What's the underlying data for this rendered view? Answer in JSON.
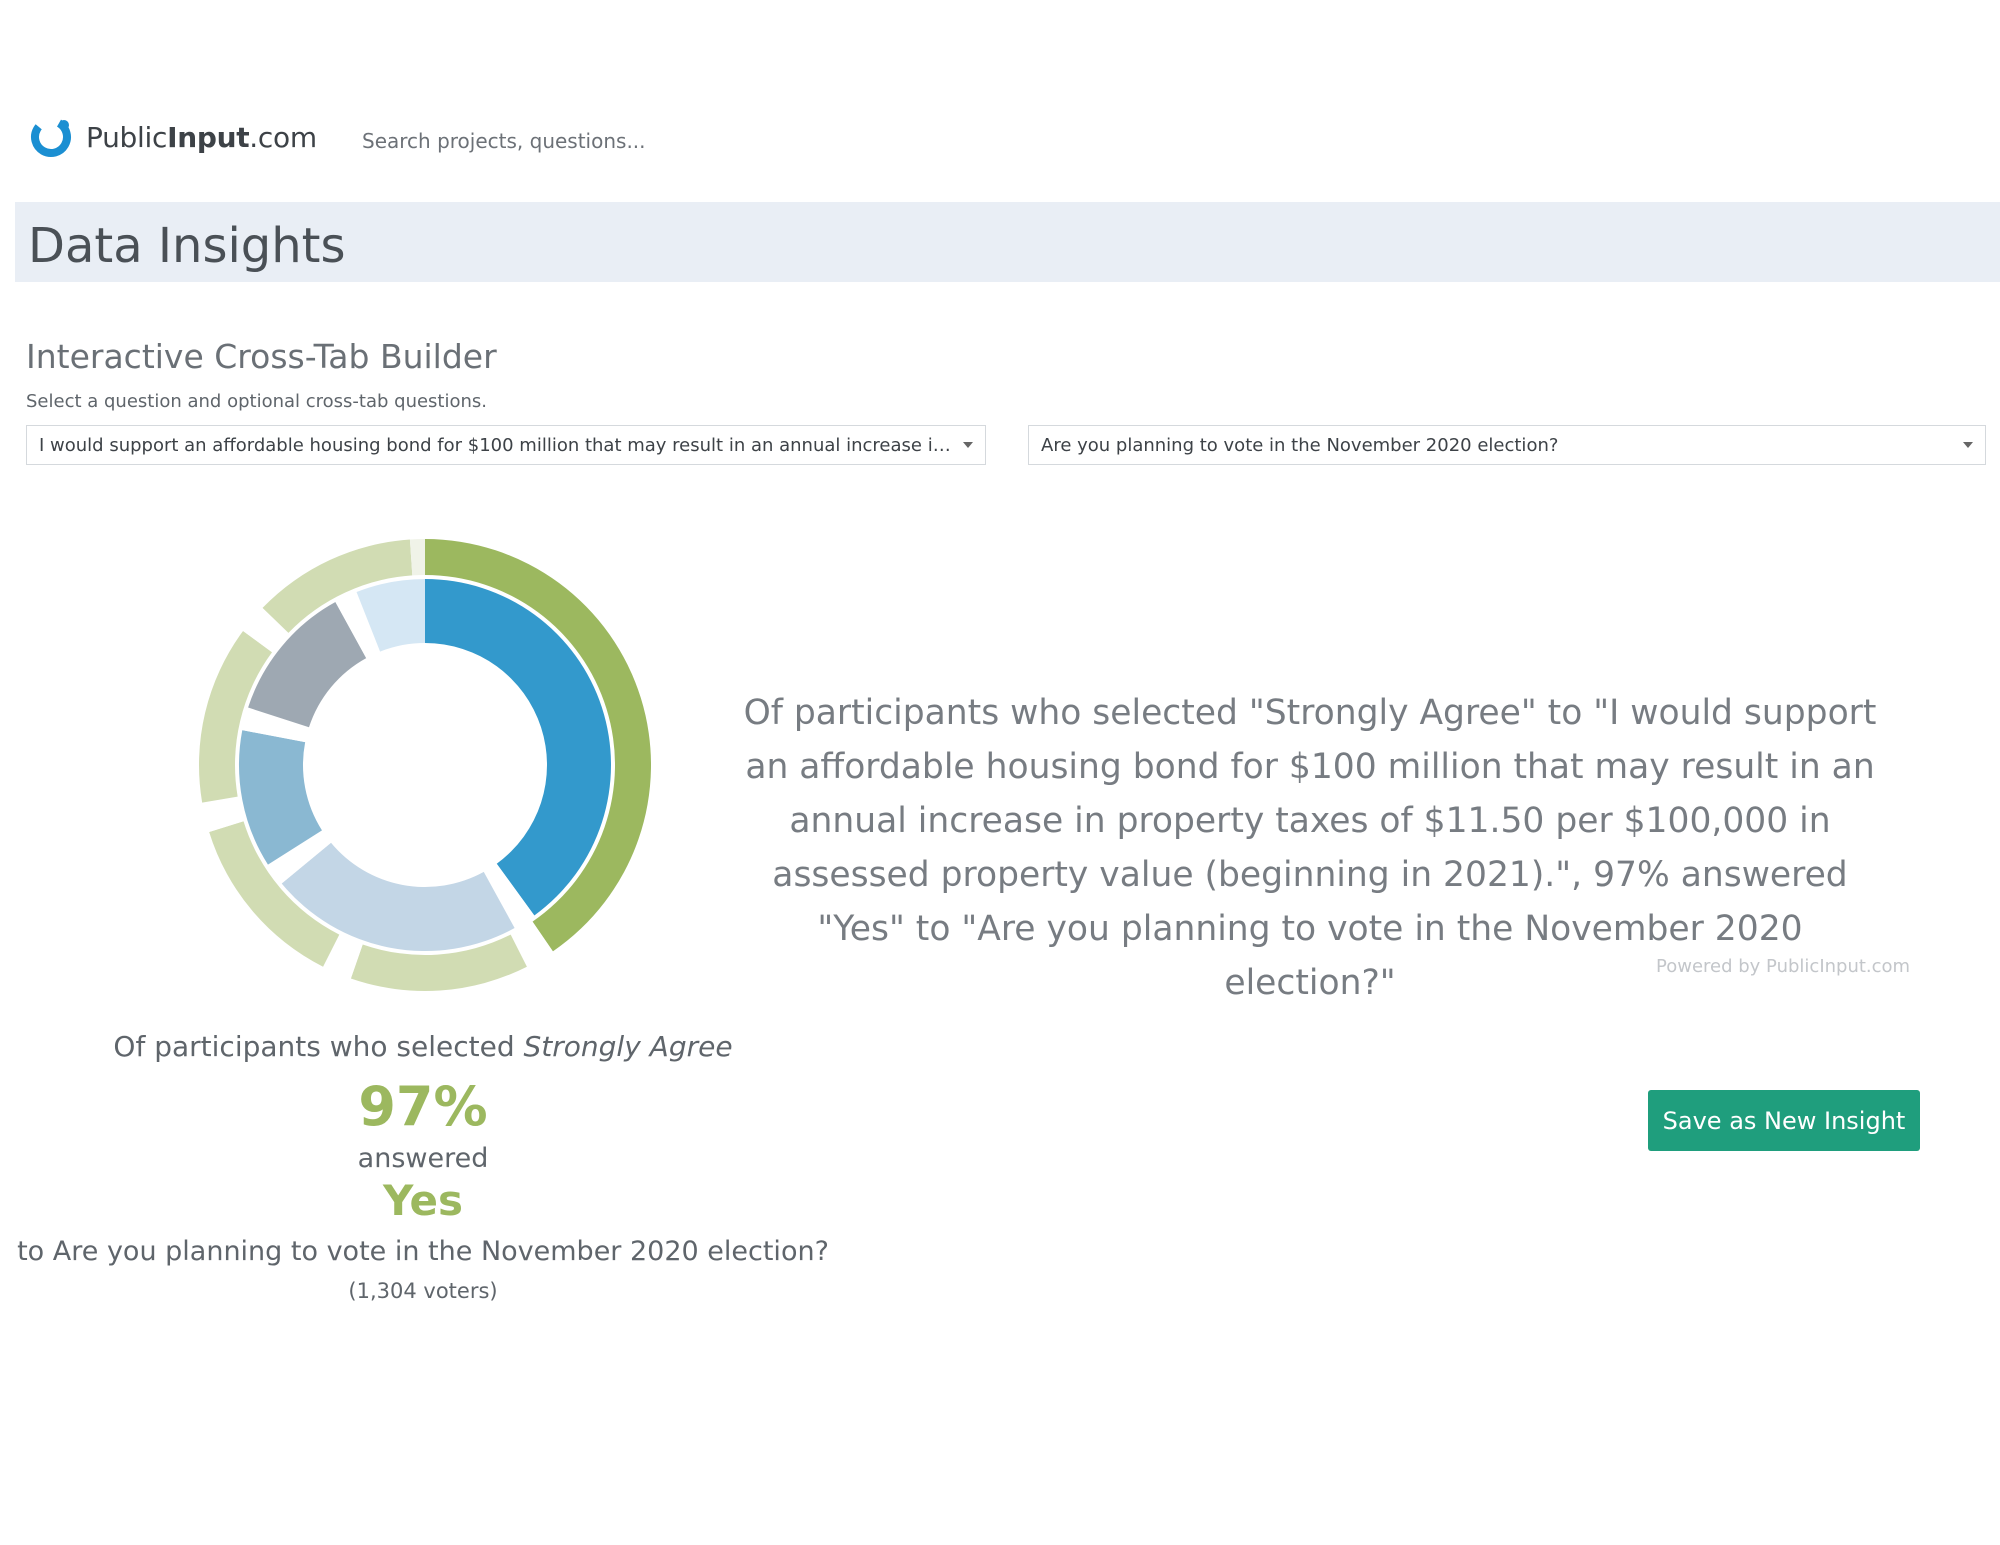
{
  "header": {
    "logo_prefix": "Public",
    "logo_bold": "Input",
    "logo_suffix": ".com",
    "search_placeholder": "Search projects, questions..."
  },
  "page": {
    "title": "Data Insights",
    "section_title": "Interactive Cross-Tab Builder",
    "instructions": "Select a question and optional cross-tab questions."
  },
  "selects": {
    "primary": "I would support an affordable housing bond for $100 million that may result in an annual increase in pro...",
    "crosstab": "Are you planning to vote in the November 2020 election?"
  },
  "summary": {
    "text": "Of participants who selected \"Strongly Agree\" to \"I would support an affordable housing bond for $100 million that may result in an annual increase in property taxes of $11.50 per $100,000 in assessed property value (beginning in 2021).\", 97% answered \"Yes\" to \"Are you planning to vote in the November 2020 election?\"",
    "powered_by": "Powered by PublicInput.com"
  },
  "stat": {
    "lead": "Of participants who selected ",
    "selected_answer": "Strongly Agree",
    "percent": "97%",
    "answered_label": "answered",
    "answer": "Yes",
    "question": "to Are you planning to vote in the November 2020 election?",
    "voters": "(1,304 voters)"
  },
  "actions": {
    "save_label": "Save as New Insight"
  },
  "icons": {
    "logo": "publicinput-logo-icon",
    "caret": "chevron-down-icon"
  },
  "colors": {
    "accent_green": "#9cb85f",
    "button_green": "#1f9e7d",
    "title_bar": "#e9eef5",
    "inner_blue": "#3399cc"
  },
  "chart_data": {
    "type": "pie",
    "style": "nested-donut",
    "outer_ring": {
      "values": [
        38,
        2,
        12,
        2,
        12,
        2,
        12,
        2,
        11,
        1
      ],
      "colors": [
        "#9cb85f",
        "#ffffff",
        "#d1dcb3",
        "#ffffff",
        "#d1dcb3",
        "#ffffff",
        "#d1dcb3",
        "#ffffff",
        "#d1dcb3",
        "#f0f3e8"
      ]
    },
    "inner_ring": {
      "values": [
        40,
        2,
        22,
        2,
        12,
        2,
        12,
        2,
        6,
        0
      ],
      "colors": [
        "#3399cc",
        "#ffffff",
        "#c3d6e6",
        "#ffffff",
        "#8ab8d2",
        "#ffffff",
        "#9ea8b2",
        "#ffffff",
        "#d5e7f4",
        "#ffffff"
      ]
    }
  }
}
